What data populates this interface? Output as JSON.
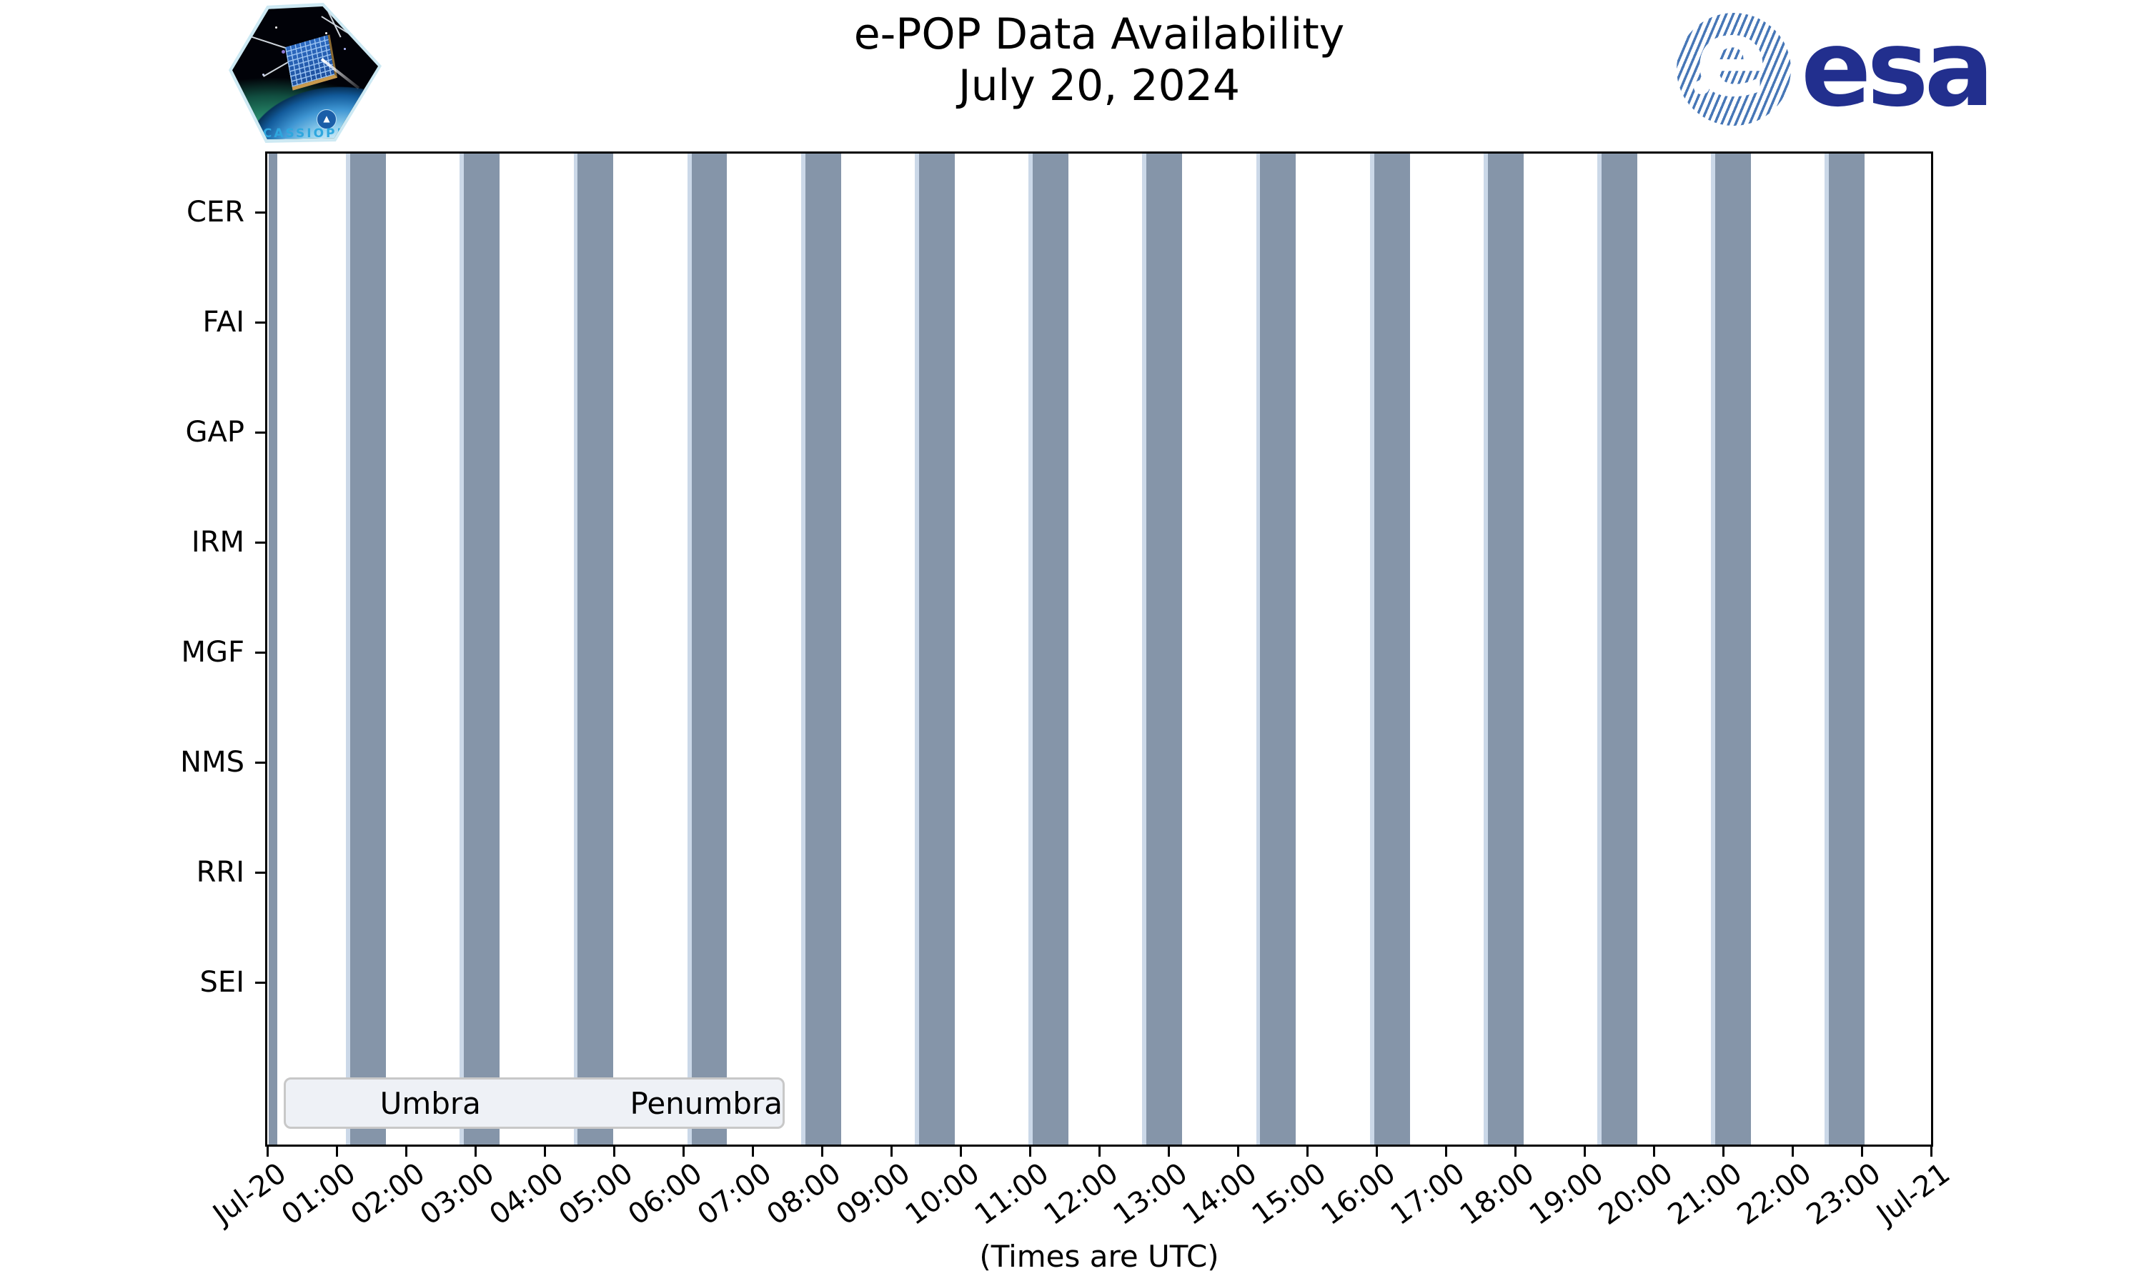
{
  "title": {
    "line1": "e-POP Data Availability",
    "line2": "July 20, 2024"
  },
  "cassiope_patch": {
    "label": "CASSIOPE",
    "badge_glyph": "▲"
  },
  "esa_logo": {
    "text": "esa",
    "globe_letter": "e",
    "navy": "#222f8e",
    "globe_blue": "#4777b7"
  },
  "colors": {
    "umbra": "#8595a9",
    "penumbra": "#cbd8e8",
    "spine": "#000000",
    "legend_bg": "#eef1f6",
    "legend_border": "#c8c8c8"
  },
  "chart_data": {
    "type": "bar",
    "subtype": "eclipse-availability-timeline",
    "title": "e-POP Data Availability July 20, 2024",
    "xlabel": "(Times are UTC)",
    "ylabel": "",
    "categories": [
      "CER",
      "FAI",
      "GAP",
      "IRM",
      "MGF",
      "NMS",
      "RRI",
      "SEI"
    ],
    "x_tick_labels": [
      "Jul-20",
      "01:00",
      "02:00",
      "03:00",
      "04:00",
      "05:00",
      "06:00",
      "07:00",
      "08:00",
      "09:00",
      "10:00",
      "11:00",
      "12:00",
      "13:00",
      "14:00",
      "15:00",
      "16:00",
      "17:00",
      "18:00",
      "19:00",
      "20:00",
      "21:00",
      "22:00",
      "23:00",
      "Jul-21"
    ],
    "x_range_hours": [
      0,
      24
    ],
    "grid": false,
    "legend": {
      "position": "lower left",
      "entries": [
        {
          "label": "Umbra",
          "color": "#8595a9"
        },
        {
          "label": "Penumbra",
          "color": "#cbd8e8"
        }
      ]
    },
    "umbra_intervals_hours": [
      [
        0.02,
        0.14
      ],
      [
        1.196,
        1.711
      ],
      [
        2.837,
        3.352
      ],
      [
        4.478,
        4.993
      ],
      [
        6.119,
        6.634
      ],
      [
        7.76,
        8.275
      ],
      [
        9.401,
        9.916
      ],
      [
        11.042,
        11.557
      ],
      [
        12.683,
        13.198
      ],
      [
        14.324,
        14.839
      ],
      [
        15.965,
        16.48
      ],
      [
        17.606,
        18.121
      ],
      [
        19.247,
        19.762
      ],
      [
        20.888,
        21.403
      ],
      [
        22.529,
        23.044
      ]
    ],
    "umbra_intervals_utc": [
      [
        "00:01",
        "00:08"
      ],
      [
        "01:12",
        "01:43"
      ],
      [
        "02:50",
        "03:21"
      ],
      [
        "04:29",
        "05:00"
      ],
      [
        "06:07",
        "06:38"
      ],
      [
        "07:46",
        "08:17"
      ],
      [
        "09:24",
        "09:55"
      ],
      [
        "11:03",
        "11:33"
      ],
      [
        "12:41",
        "13:12"
      ],
      [
        "14:19",
        "14:50"
      ],
      [
        "15:58",
        "16:29"
      ],
      [
        "17:36",
        "18:07"
      ],
      [
        "19:15",
        "19:46"
      ],
      [
        "20:53",
        "21:24"
      ],
      [
        "22:32",
        "23:03"
      ]
    ],
    "penumbra_lead_hours": 0.06
  }
}
